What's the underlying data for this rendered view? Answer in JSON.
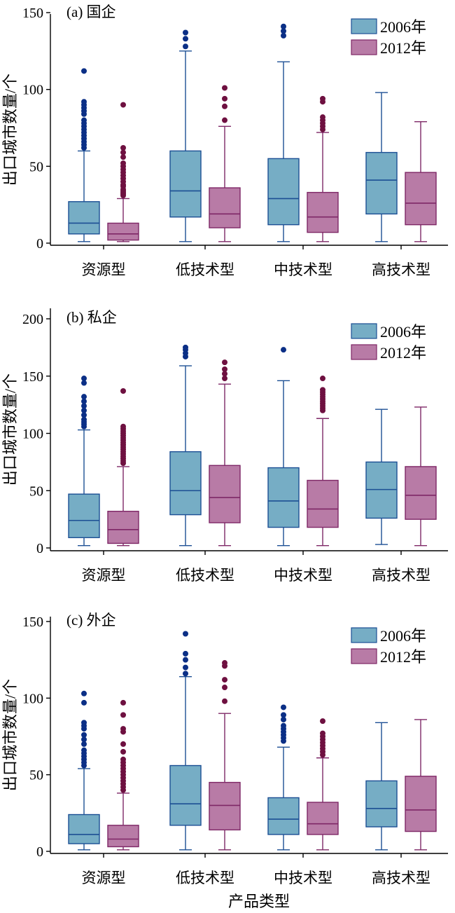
{
  "colors": {
    "y2006_fill": "#76adc5",
    "y2006_line": "#1c4f94",
    "y2006_dot": "#0b2f86",
    "y2012_fill": "#b87ba6",
    "y2012_line": "#7e2766",
    "y2012_dot": "#6e1040"
  },
  "x_title": "产品类型",
  "chart_data": [
    {
      "type": "box",
      "title": "(a) 国企",
      "ylabel": "出口城市数量/个",
      "ylim": [
        0,
        150
      ],
      "yticks": [
        0,
        50,
        100,
        150
      ],
      "categories": [
        "资源型",
        "低技术型",
        "中技术型",
        "高技术型"
      ],
      "legend": [
        "2006年",
        "2012年"
      ],
      "legend_position": "top-right",
      "series": [
        {
          "name": "2006年",
          "boxes": [
            {
              "min": 1,
              "q1": 6,
              "median": 13,
              "q3": 27,
              "max": 60,
              "outliers": [
                62,
                64,
                66,
                68,
                70,
                72,
                74,
                76,
                78,
                80,
                84,
                86,
                88,
                90,
                92,
                112
              ]
            },
            {
              "min": 1,
              "q1": 17,
              "median": 34,
              "q3": 60,
              "max": 125,
              "outliers": [
                128,
                133,
                137
              ]
            },
            {
              "min": 1,
              "q1": 12,
              "median": 29,
              "q3": 55,
              "max": 118,
              "outliers": [
                135,
                138,
                141
              ]
            },
            {
              "min": 1,
              "q1": 19,
              "median": 41,
              "q3": 59,
              "max": 98,
              "outliers": []
            }
          ]
        },
        {
          "name": "2012年",
          "boxes": [
            {
              "min": 1,
              "q1": 2,
              "median": 6,
              "q3": 13,
              "max": 29,
              "outliers": [
                31,
                32,
                33,
                34,
                35,
                37,
                38,
                40,
                42,
                44,
                46,
                48,
                50,
                52,
                56,
                59,
                62,
                90
              ]
            },
            {
              "min": 1,
              "q1": 10,
              "median": 19,
              "q3": 36,
              "max": 76,
              "outliers": [
                80,
                89,
                94,
                101
              ]
            },
            {
              "min": 1,
              "q1": 7,
              "median": 17,
              "q3": 33,
              "max": 72,
              "outliers": [
                74,
                76,
                78,
                80,
                82,
                92,
                94
              ]
            },
            {
              "min": 1,
              "q1": 12,
              "median": 26,
              "q3": 46,
              "max": 79,
              "outliers": []
            }
          ]
        }
      ]
    },
    {
      "type": "box",
      "title": "(b) 私企",
      "ylabel": "出口城市数量/个",
      "ylim": [
        0,
        200
      ],
      "yticks": [
        0,
        50,
        100,
        150,
        200
      ],
      "categories": [
        "资源型",
        "低技术型",
        "中技术型",
        "高技术型"
      ],
      "legend": [
        "2006年",
        "2012年"
      ],
      "legend_position": "top-right",
      "series": [
        {
          "name": "2006年",
          "boxes": [
            {
              "min": 2,
              "q1": 9,
              "median": 24,
              "q3": 47,
              "max": 103,
              "outliers": [
                106,
                108,
                110,
                112,
                116,
                120,
                124,
                128,
                132,
                144,
                148
              ]
            },
            {
              "min": 2,
              "q1": 29,
              "median": 50,
              "q3": 84,
              "max": 159,
              "outliers": [
                167,
                170,
                173,
                175
              ]
            },
            {
              "min": 2,
              "q1": 18,
              "median": 41,
              "q3": 70,
              "max": 146,
              "outliers": [
                173
              ]
            },
            {
              "min": 3,
              "q1": 26,
              "median": 51,
              "q3": 75,
              "max": 121,
              "outliers": []
            }
          ]
        },
        {
          "name": "2012年",
          "boxes": [
            {
              "min": 2,
              "q1": 4,
              "median": 16,
              "q3": 32,
              "max": 71,
              "outliers": [
                74,
                76,
                78,
                80,
                82,
                84,
                86,
                88,
                90,
                92,
                94,
                96,
                98,
                100,
                102,
                104,
                106,
                137
              ]
            },
            {
              "min": 2,
              "q1": 22,
              "median": 44,
              "q3": 72,
              "max": 143,
              "outliers": [
                148,
                152,
                156,
                162
              ]
            },
            {
              "min": 2,
              "q1": 18,
              "median": 34,
              "q3": 59,
              "max": 113,
              "outliers": [
                120,
                122,
                124,
                126,
                128,
                130,
                132,
                134,
                136,
                138,
                148
              ]
            },
            {
              "min": 2,
              "q1": 25,
              "median": 46,
              "q3": 71,
              "max": 123,
              "outliers": []
            }
          ]
        }
      ]
    },
    {
      "type": "box",
      "title": "(c) 外企",
      "ylabel": "出口城市数量/个",
      "xlabel": "产品类型",
      "ylim": [
        0,
        150
      ],
      "yticks": [
        0,
        50,
        100,
        150
      ],
      "categories": [
        "资源型",
        "低技术型",
        "中技术型",
        "高技术型"
      ],
      "legend": [
        "2006年",
        "2012年"
      ],
      "legend_position": "top-right",
      "series": [
        {
          "name": "2006年",
          "boxes": [
            {
              "min": 1,
              "q1": 5,
              "median": 11,
              "q3": 24,
              "max": 54,
              "outliers": [
                56,
                58,
                60,
                62,
                64,
                66,
                70,
                73,
                76,
                80,
                82,
                84,
                97,
                103
              ]
            },
            {
              "min": 1,
              "q1": 17,
              "median": 31,
              "q3": 56,
              "max": 114,
              "outliers": [
                116,
                120,
                125,
                129,
                142
              ]
            },
            {
              "min": 1,
              "q1": 11,
              "median": 21,
              "q3": 35,
              "max": 68,
              "outliers": [
                72,
                74,
                76,
                78,
                80,
                82,
                86,
                89,
                94
              ]
            },
            {
              "min": 1,
              "q1": 16,
              "median": 28,
              "q3": 46,
              "max": 84,
              "outliers": []
            }
          ]
        },
        {
          "name": "2012年",
          "boxes": [
            {
              "min": 1,
              "q1": 3,
              "median": 8,
              "q3": 17,
              "max": 38,
              "outliers": [
                40,
                42,
                44,
                46,
                48,
                50,
                52,
                54,
                56,
                58,
                60,
                65,
                70,
                78,
                80,
                89,
                97
              ]
            },
            {
              "min": 1,
              "q1": 14,
              "median": 30,
              "q3": 45,
              "max": 90,
              "outliers": [
                98,
                107,
                112,
                121,
                123
              ]
            },
            {
              "min": 1,
              "q1": 11,
              "median": 18,
              "q3": 32,
              "max": 61,
              "outliers": [
                63,
                65,
                67,
                69,
                71,
                73,
                75,
                77,
                85
              ]
            },
            {
              "min": 1,
              "q1": 13,
              "median": 27,
              "q3": 49,
              "max": 86,
              "outliers": []
            }
          ]
        }
      ]
    }
  ]
}
